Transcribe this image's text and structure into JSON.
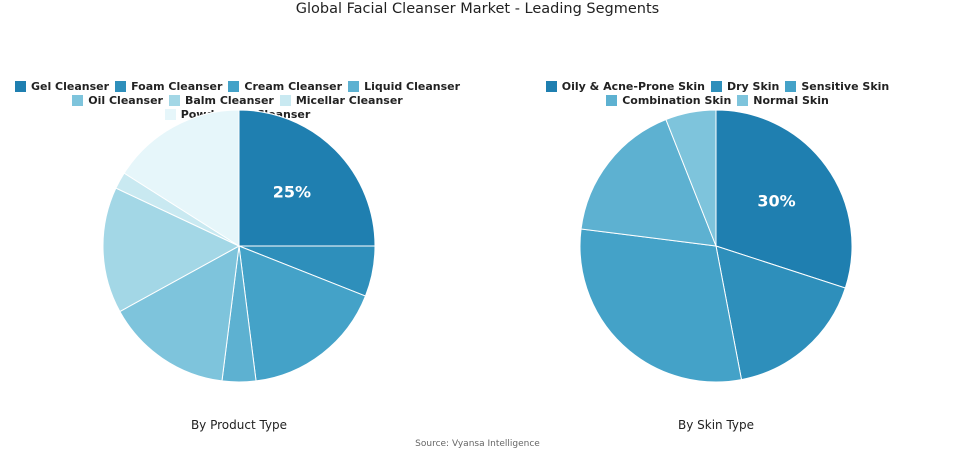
{
  "title": "Global Facial Cleanser Market - Leading Segments",
  "source": "Source: Vyansa Intelligence",
  "chart_data": [
    {
      "type": "pie",
      "subtitle": "By Product Type",
      "legend_position": "top",
      "categories": [
        "Gel Cleanser",
        "Foam Cleanser",
        "Cream Cleanser",
        "Liquid Cleanser",
        "Oil Cleanser",
        "Balm Cleanser",
        "Micellar Cleanser",
        "Powder/Bar Cleanser"
      ],
      "values": [
        25,
        6,
        17,
        4,
        15,
        15,
        2,
        16
      ],
      "colors": [
        "#1f7fb0",
        "#2e8fbb",
        "#44a2c8",
        "#5db1d1",
        "#7ec4dc",
        "#a3d7e6",
        "#c9e9f1",
        "#e6f6fa"
      ],
      "data_labels": [
        "25%",
        "",
        "",
        "",
        "",
        "",
        "",
        ""
      ]
    },
    {
      "type": "pie",
      "subtitle": "By Skin Type",
      "legend_position": "top",
      "categories": [
        "Oily & Acne-Prone Skin",
        "Dry Skin",
        "Sensitive Skin",
        "Combination Skin",
        "Normal Skin"
      ],
      "values": [
        30,
        17,
        30,
        17,
        6
      ],
      "colors": [
        "#1f7fb0",
        "#2e8fbb",
        "#44a2c8",
        "#5db1d1",
        "#7ec4dc"
      ],
      "data_labels": [
        "30%",
        "",
        "",
        "",
        ""
      ]
    }
  ]
}
